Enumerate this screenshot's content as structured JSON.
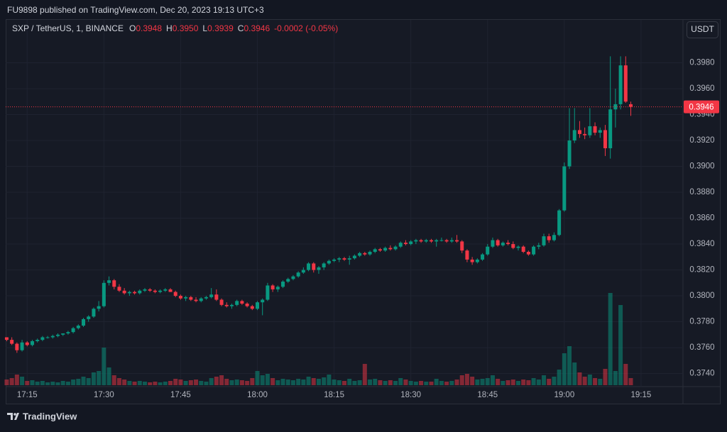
{
  "header": {
    "text": "FU9898 published on TradingView.com, Dec 20, 2023 19:13 UTC+3"
  },
  "footer": {
    "brand": "TradingView"
  },
  "chart_data": {
    "type": "candlestick",
    "legend": {
      "symbol": "SXP / TetherUS, 1, BINANCE",
      "fields": [
        {
          "label": "O",
          "value": "0.3948"
        },
        {
          "label": "H",
          "value": "0.3950"
        },
        {
          "label": "L",
          "value": "0.3939"
        },
        {
          "label": "C",
          "value": "0.3946"
        }
      ],
      "change": "-0.0002 (-0.05%)"
    },
    "currency": "USDT",
    "up_color": "#089981",
    "down_color": "#f23645",
    "grid": true,
    "last_price": {
      "value": 0.3946,
      "label": "0.3946"
    },
    "xlim": [
      1030.8,
      1163.2
    ],
    "ylim": [
      0.3731,
      0.4
    ],
    "xticks": [
      {
        "value": 1035,
        "label": "17:15"
      },
      {
        "value": 1050,
        "label": "17:30"
      },
      {
        "value": 1065,
        "label": "17:45"
      },
      {
        "value": 1080,
        "label": "18:00"
      },
      {
        "value": 1095,
        "label": "18:15"
      },
      {
        "value": 1110,
        "label": "18:30"
      },
      {
        "value": 1125,
        "label": "18:45"
      },
      {
        "value": 1140,
        "label": "19:00"
      },
      {
        "value": 1155,
        "label": "19:15"
      }
    ],
    "yticks": [
      {
        "value": 0.374,
        "label": "0.3740"
      },
      {
        "value": 0.376,
        "label": "0.3760"
      },
      {
        "value": 0.378,
        "label": "0.3780"
      },
      {
        "value": 0.38,
        "label": "0.3800"
      },
      {
        "value": 0.382,
        "label": "0.3820"
      },
      {
        "value": 0.384,
        "label": "0.3840"
      },
      {
        "value": 0.386,
        "label": "0.3860"
      },
      {
        "value": 0.388,
        "label": "0.3880"
      },
      {
        "value": 0.39,
        "label": "0.3900"
      },
      {
        "value": 0.392,
        "label": "0.3920"
      },
      {
        "value": 0.394,
        "label": "0.3940"
      },
      {
        "value": 0.396,
        "label": "0.3960"
      },
      {
        "value": 0.398,
        "label": "0.3980"
      }
    ],
    "x": [
      1031,
      1032,
      1033,
      1034,
      1035,
      1036,
      1037,
      1038,
      1039,
      1040,
      1041,
      1042,
      1043,
      1044,
      1045,
      1046,
      1047,
      1048,
      1049,
      1050,
      1051,
      1052,
      1053,
      1054,
      1055,
      1056,
      1057,
      1058,
      1059,
      1060,
      1061,
      1062,
      1063,
      1064,
      1065,
      1066,
      1067,
      1068,
      1069,
      1070,
      1071,
      1072,
      1073,
      1074,
      1075,
      1076,
      1077,
      1078,
      1079,
      1080,
      1081,
      1082,
      1083,
      1084,
      1085,
      1086,
      1087,
      1088,
      1089,
      1090,
      1091,
      1092,
      1093,
      1094,
      1095,
      1096,
      1097,
      1098,
      1099,
      1100,
      1101,
      1102,
      1103,
      1104,
      1105,
      1106,
      1107,
      1108,
      1109,
      1110,
      1111,
      1112,
      1113,
      1114,
      1115,
      1116,
      1117,
      1118,
      1119,
      1120,
      1121,
      1122,
      1123,
      1124,
      1125,
      1126,
      1127,
      1128,
      1129,
      1130,
      1131,
      1132,
      1133,
      1134,
      1135,
      1136,
      1137,
      1138,
      1139,
      1140,
      1141,
      1142,
      1143,
      1144,
      1145,
      1146,
      1147,
      1148,
      1149,
      1150,
      1151,
      1152,
      1153
    ],
    "open": [
      0.3768,
      0.3766,
      0.3763,
      0.3758,
      0.3764,
      0.3762,
      0.3765,
      0.3766,
      0.3768,
      0.3768,
      0.3769,
      0.377,
      0.3771,
      0.3772,
      0.3775,
      0.3777,
      0.3782,
      0.3784,
      0.379,
      0.3792,
      0.381,
      0.3812,
      0.3807,
      0.3804,
      0.3802,
      0.3803,
      0.3802,
      0.3804,
      0.3805,
      0.3804,
      0.3803,
      0.3804,
      0.3805,
      0.3803,
      0.38,
      0.3798,
      0.3799,
      0.3797,
      0.3796,
      0.3798,
      0.3799,
      0.3801,
      0.3797,
      0.3793,
      0.3792,
      0.3793,
      0.3796,
      0.3794,
      0.3792,
      0.379,
      0.3795,
      0.3797,
      0.3808,
      0.3805,
      0.3807,
      0.3811,
      0.3813,
      0.3815,
      0.3818,
      0.382,
      0.3825,
      0.382,
      0.3822,
      0.3825,
      0.3827,
      0.3828,
      0.3829,
      0.3828,
      0.3829,
      0.3831,
      0.3833,
      0.3832,
      0.3834,
      0.3836,
      0.3835,
      0.3837,
      0.3836,
      0.3838,
      0.3841,
      0.384,
      0.3842,
      0.3843,
      0.3842,
      0.3843,
      0.3842,
      0.3843,
      0.3843,
      0.3842,
      0.3843,
      0.3842,
      0.3835,
      0.3828,
      0.3826,
      0.3828,
      0.3832,
      0.3838,
      0.3843,
      0.3839,
      0.3841,
      0.384,
      0.3837,
      0.3838,
      0.3834,
      0.3832,
      0.3838,
      0.3839,
      0.3846,
      0.3843,
      0.3847,
      0.3866,
      0.39,
      0.392,
      0.3928,
      0.3925,
      0.3924,
      0.3931,
      0.3926,
      0.3928,
      0.3914,
      0.3944,
      0.3948,
      0.3978,
      0.3948
    ],
    "high": [
      0.3768,
      0.3768,
      0.3764,
      0.3766,
      0.3765,
      0.3766,
      0.3767,
      0.3769,
      0.3769,
      0.377,
      0.3771,
      0.3771,
      0.3773,
      0.3776,
      0.3778,
      0.3783,
      0.3785,
      0.3791,
      0.3796,
      0.3812,
      0.3815,
      0.3813,
      0.3809,
      0.3806,
      0.3804,
      0.3804,
      0.3805,
      0.3806,
      0.3806,
      0.3805,
      0.3805,
      0.3806,
      0.3806,
      0.3804,
      0.3801,
      0.38,
      0.38,
      0.3799,
      0.3799,
      0.38,
      0.3806,
      0.3805,
      0.3798,
      0.3795,
      0.3794,
      0.3797,
      0.3797,
      0.3795,
      0.3793,
      0.3796,
      0.3798,
      0.381,
      0.3809,
      0.3808,
      0.3812,
      0.3814,
      0.3816,
      0.3819,
      0.3822,
      0.3826,
      0.3826,
      0.3823,
      0.3826,
      0.3828,
      0.3829,
      0.383,
      0.383,
      0.3831,
      0.3832,
      0.3834,
      0.3834,
      0.3835,
      0.3837,
      0.3837,
      0.3838,
      0.3839,
      0.3839,
      0.3842,
      0.3843,
      0.3843,
      0.3844,
      0.3844,
      0.3844,
      0.3844,
      0.3844,
      0.3845,
      0.3844,
      0.3845,
      0.3847,
      0.3843,
      0.3836,
      0.383,
      0.3829,
      0.3833,
      0.384,
      0.3845,
      0.3844,
      0.3842,
      0.3843,
      0.3842,
      0.3839,
      0.3839,
      0.3835,
      0.3839,
      0.3841,
      0.3848,
      0.3848,
      0.3849,
      0.3867,
      0.3903,
      0.3945,
      0.3945,
      0.3935,
      0.393,
      0.3945,
      0.3934,
      0.393,
      0.3932,
      0.3985,
      0.396,
      0.3985,
      0.3985,
      0.395
    ],
    "low": [
      0.3765,
      0.3762,
      0.3756,
      0.3757,
      0.3761,
      0.3761,
      0.3764,
      0.3765,
      0.3767,
      0.3767,
      0.3768,
      0.3769,
      0.377,
      0.3771,
      0.3774,
      0.3776,
      0.378,
      0.3783,
      0.3788,
      0.3791,
      0.3808,
      0.3805,
      0.3803,
      0.3801,
      0.38,
      0.3801,
      0.3801,
      0.3803,
      0.3803,
      0.3802,
      0.3802,
      0.3803,
      0.3803,
      0.3799,
      0.3797,
      0.3796,
      0.3796,
      0.3795,
      0.3795,
      0.3797,
      0.3798,
      0.3796,
      0.3792,
      0.3791,
      0.379,
      0.3792,
      0.3793,
      0.3791,
      0.3789,
      0.3789,
      0.3785,
      0.3796,
      0.3803,
      0.3803,
      0.3806,
      0.381,
      0.3812,
      0.3814,
      0.3817,
      0.3819,
      0.3818,
      0.3817,
      0.382,
      0.3824,
      0.3826,
      0.3826,
      0.3827,
      0.3824,
      0.3828,
      0.383,
      0.3831,
      0.3831,
      0.3833,
      0.3834,
      0.3834,
      0.3835,
      0.3835,
      0.3837,
      0.3839,
      0.3839,
      0.384,
      0.3841,
      0.3841,
      0.3841,
      0.3838,
      0.3842,
      0.3841,
      0.3841,
      0.3841,
      0.3833,
      0.3826,
      0.3824,
      0.3825,
      0.3827,
      0.3831,
      0.3837,
      0.3838,
      0.3838,
      0.3839,
      0.3836,
      0.3835,
      0.3833,
      0.3831,
      0.3831,
      0.3836,
      0.3838,
      0.3841,
      0.3842,
      0.3846,
      0.3865,
      0.3898,
      0.3918,
      0.3922,
      0.3921,
      0.3922,
      0.3924,
      0.3922,
      0.3908,
      0.3906,
      0.393,
      0.3944,
      0.3949,
      0.3939
    ],
    "close": [
      0.3766,
      0.3763,
      0.3758,
      0.3764,
      0.3762,
      0.3765,
      0.3766,
      0.3768,
      0.3768,
      0.3769,
      0.377,
      0.3771,
      0.3772,
      0.3775,
      0.3777,
      0.3782,
      0.3784,
      0.379,
      0.3792,
      0.381,
      0.3812,
      0.3807,
      0.3804,
      0.3802,
      0.3803,
      0.3802,
      0.3804,
      0.3805,
      0.3804,
      0.3803,
      0.3804,
      0.3805,
      0.3803,
      0.38,
      0.3798,
      0.3799,
      0.3797,
      0.3796,
      0.3798,
      0.3799,
      0.3801,
      0.3797,
      0.3793,
      0.3792,
      0.3793,
      0.3796,
      0.3794,
      0.3792,
      0.379,
      0.3795,
      0.3797,
      0.3808,
      0.3805,
      0.3807,
      0.3811,
      0.3813,
      0.3815,
      0.3818,
      0.382,
      0.3825,
      0.382,
      0.3822,
      0.3825,
      0.3827,
      0.3828,
      0.3829,
      0.3828,
      0.3829,
      0.3831,
      0.3833,
      0.3832,
      0.3834,
      0.3836,
      0.3835,
      0.3837,
      0.3836,
      0.3838,
      0.3841,
      0.384,
      0.3842,
      0.3843,
      0.3842,
      0.3843,
      0.3842,
      0.3843,
      0.3843,
      0.3842,
      0.3843,
      0.3842,
      0.3835,
      0.3828,
      0.3826,
      0.3828,
      0.3832,
      0.3838,
      0.3843,
      0.3839,
      0.3841,
      0.384,
      0.3837,
      0.3838,
      0.3834,
      0.3832,
      0.3838,
      0.3839,
      0.3846,
      0.3843,
      0.3847,
      0.3866,
      0.39,
      0.392,
      0.3928,
      0.3925,
      0.3924,
      0.3931,
      0.3926,
      0.3928,
      0.3914,
      0.3944,
      0.3948,
      0.3978,
      0.395,
      0.3946
    ],
    "volume": [
      8,
      10,
      15,
      12,
      6,
      7,
      5,
      6,
      4,
      5,
      4,
      6,
      5,
      8,
      9,
      12,
      10,
      18,
      20,
      53,
      25,
      14,
      10,
      8,
      6,
      5,
      6,
      5,
      4,
      5,
      4,
      5,
      6,
      9,
      8,
      6,
      7,
      8,
      6,
      5,
      10,
      12,
      14,
      9,
      7,
      8,
      7,
      6,
      10,
      20,
      14,
      16,
      10,
      7,
      9,
      8,
      7,
      9,
      8,
      12,
      10,
      9,
      11,
      15,
      8,
      7,
      6,
      9,
      6,
      7,
      30,
      8,
      9,
      7,
      6,
      7,
      6,
      10,
      8,
      6,
      5,
      6,
      5,
      5,
      9,
      6,
      5,
      6,
      8,
      14,
      16,
      12,
      8,
      9,
      10,
      14,
      9,
      6,
      7,
      8,
      6,
      8,
      7,
      10,
      8,
      14,
      9,
      12,
      22,
      45,
      55,
      32,
      18,
      12,
      15,
      10,
      9,
      23,
      130,
      20,
      113,
      30,
      10
    ]
  }
}
